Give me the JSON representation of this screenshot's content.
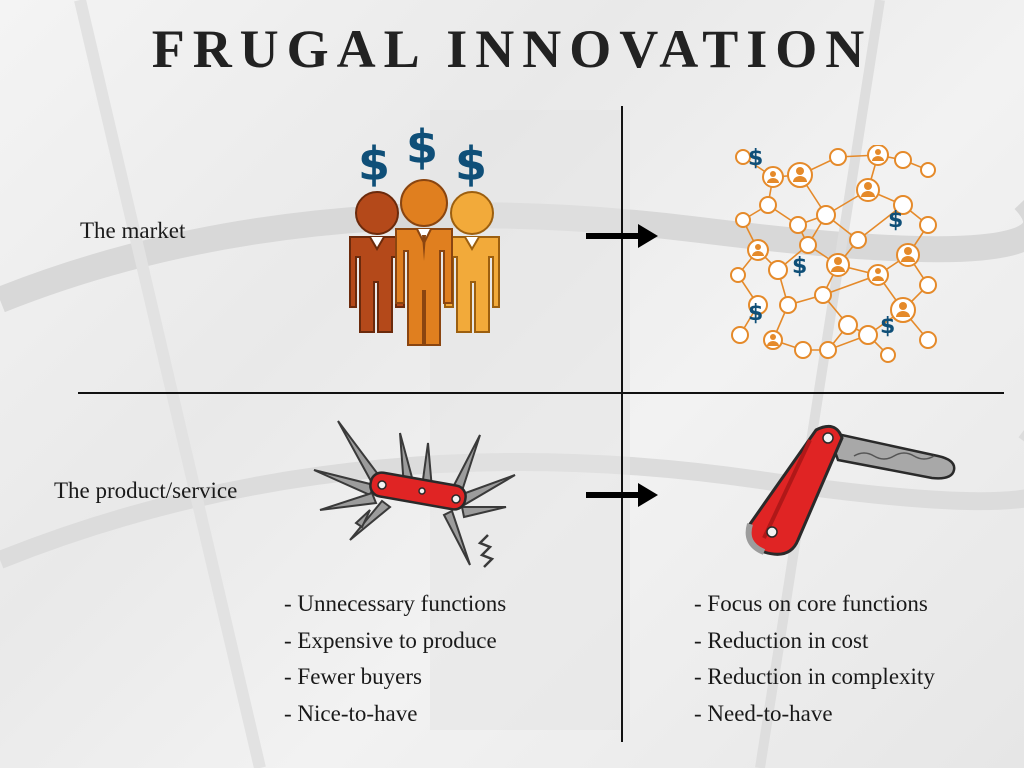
{
  "title": "FRUGAL INNOVATION",
  "rows": {
    "market_label": "The market",
    "product_label": "The product/service"
  },
  "left_list": [
    "- Unnecessary functions",
    "- Expensive to produce",
    "- Fewer buyers",
    "- Nice-to-have"
  ],
  "right_list": [
    "- Focus on core functions",
    "- Reduction in cost",
    "- Reduction in complexity",
    "- Need-to-have"
  ],
  "icons": {
    "dollar_sign": "$",
    "people": "business-people-group-icon",
    "network": "social-network-icon",
    "multitool": "swiss-army-knife-icon",
    "simple_knife": "pocket-knife-icon",
    "arrow": "right-arrow-icon"
  },
  "colors": {
    "dollar": "#0f4f78",
    "person_dark": "#b4491a",
    "person_mid": "#e07f1f",
    "person_light": "#f2aa3a",
    "network": "#e58a2a",
    "knife_red": "#e02424",
    "blade_gray": "#9c9c9c"
  }
}
